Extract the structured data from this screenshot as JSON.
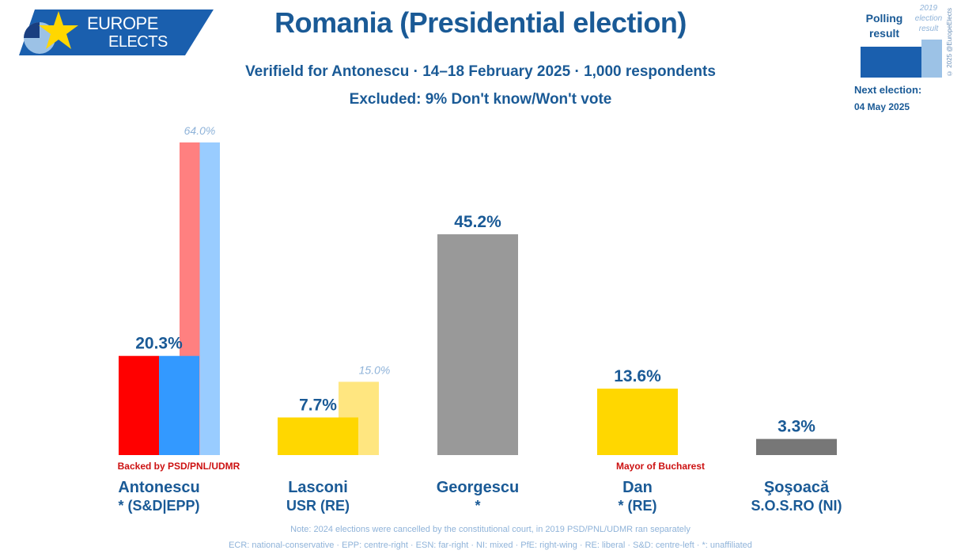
{
  "logo": {
    "line1": "EUROPE",
    "line2": "ELECTS"
  },
  "title": "Romania (Presidential election)",
  "subtitle": "Verifield for Antonescu · 14–18 February 2025 · 1,000 respondents",
  "excluded": "Excluded: 9% Don't know/Won't vote",
  "legend": {
    "polling_label": "Polling result",
    "previous_label": "2019 election result",
    "copyright": "© 2025 @EuropeElects",
    "next_election_label": "Next election:",
    "next_election_date": "04 May 2025"
  },
  "chart_data": {
    "type": "bar",
    "categories": [
      "Antonescu",
      "Lasconi",
      "Georgescu",
      "Dan",
      "Şoşoacă"
    ],
    "parties": [
      "* (S&D|EPP)",
      "USR (RE)",
      "*",
      "* (RE)",
      "S.O.S.RO (NI)"
    ],
    "values": [
      20.3,
      7.7,
      45.2,
      13.6,
      3.3
    ],
    "value_labels": [
      "20.3%",
      "7.7%",
      "45.2%",
      "13.6%",
      "3.3%"
    ],
    "previous_values": [
      64.0,
      15.0,
      null,
      null,
      null
    ],
    "previous_labels": [
      "64.0%",
      "15.0%",
      "",
      "",
      ""
    ],
    "annotations": [
      "Backed by PSD/PNL/UDMR",
      "",
      "",
      "Mayor of Bucharest",
      ""
    ],
    "ylim": [
      0,
      70
    ],
    "colors": {
      "antonescu_red": "#ff0000",
      "antonescu_blue": "#3399ff",
      "prev_red": "#ff8080",
      "prev_blue": "#99ccff",
      "lasconi": "#ffd700",
      "lasconi_prev": "#ffe680",
      "georgescu": "#999999",
      "dan": "#ffd700",
      "sosoaca": "#777777"
    },
    "grid": false,
    "legend": "top-right"
  },
  "notes": {
    "line1": "Note: 2024 elections were cancelled by the constitutional court, in 2019 PSD/PNL/UDMR ran separately",
    "line2": "ECR: national-conservative · EPP: centre-right · ESN: far-right · NI: mixed · PfE: right-wing · RE: liberal · S&D: centre-left · *: unaffiliated"
  }
}
